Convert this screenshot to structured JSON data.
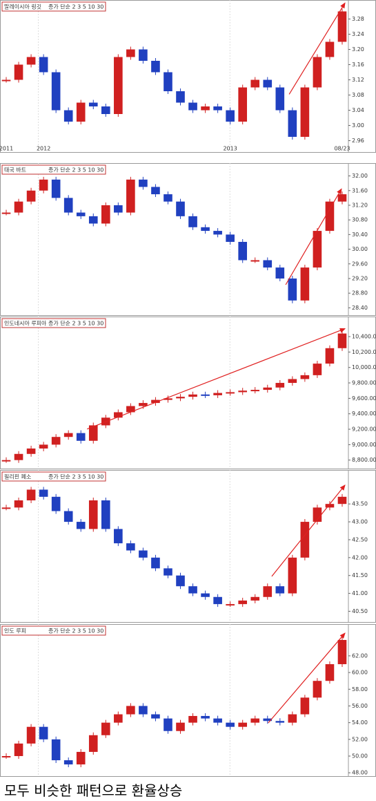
{
  "caption": "모두 비슷한 패턴으로 환율상승",
  "chart_data": [
    {
      "type": "candle",
      "title": "말레이시아 링깃",
      "legend": "종가 단순 2 3 5 10 30",
      "categories": [
        "2011",
        null,
        null,
        "2012",
        null,
        null,
        null,
        null,
        null,
        null,
        null,
        null,
        null,
        null,
        null,
        null,
        null,
        null,
        "2013",
        null,
        null,
        null,
        null,
        null,
        null,
        null,
        null,
        "08/23"
      ],
      "values": [
        3.12,
        3.16,
        3.18,
        3.14,
        3.04,
        3.01,
        3.06,
        3.05,
        3.03,
        3.18,
        3.2,
        3.17,
        3.14,
        3.09,
        3.06,
        3.04,
        3.05,
        3.04,
        3.01,
        3.1,
        3.12,
        3.1,
        3.04,
        2.97,
        3.1,
        3.18,
        3.22,
        3.3
      ],
      "ylim": [
        2.93,
        3.33
      ],
      "yticks": [
        {
          "value": 2.96,
          "label": "2.96"
        },
        {
          "value": 3.0,
          "label": "3.00"
        },
        {
          "value": 3.04,
          "label": "3.04"
        },
        {
          "value": 3.08,
          "label": "3.08"
        },
        {
          "value": 3.12,
          "label": "3.12"
        },
        {
          "value": 3.16,
          "label": "3.16"
        },
        {
          "value": 3.2,
          "label": "3.20"
        },
        {
          "value": 3.24,
          "label": "3.24"
        },
        {
          "value": 3.28,
          "label": "3.28"
        }
      ]
    },
    {
      "type": "candle",
      "title": "태국 바트",
      "legend": "종가 단순 2 3 5 10 30",
      "values": [
        31.0,
        31.3,
        31.6,
        31.9,
        31.4,
        31.0,
        30.9,
        30.7,
        31.2,
        31.0,
        31.9,
        31.7,
        31.5,
        31.3,
        30.9,
        30.6,
        30.5,
        30.4,
        30.2,
        29.7,
        29.7,
        29.5,
        29.2,
        28.6,
        29.5,
        30.5,
        31.3,
        31.5
      ],
      "ylim": [
        28.2,
        32.35
      ],
      "yticks": [
        {
          "value": 28.4,
          "label": "28.40"
        },
        {
          "value": 28.8,
          "label": "28.80"
        },
        {
          "value": 29.2,
          "label": "29.20"
        },
        {
          "value": 29.6,
          "label": "29.60"
        },
        {
          "value": 30.0,
          "label": "30.00"
        },
        {
          "value": 30.4,
          "label": "30.40"
        },
        {
          "value": 30.8,
          "label": "30.80"
        },
        {
          "value": 31.2,
          "label": "31.20"
        },
        {
          "value": 31.6,
          "label": "31.60"
        },
        {
          "value": 32.0,
          "label": "32.00"
        }
      ]
    },
    {
      "type": "candle",
      "title": "인도네시아 루피아",
      "legend": "종가 단순 2 3 5 10 30",
      "values": [
        8800,
        8880,
        8950,
        9000,
        9100,
        9150,
        9050,
        9250,
        9350,
        9420,
        9500,
        9540,
        9580,
        9600,
        9620,
        9650,
        9640,
        9670,
        9680,
        9700,
        9710,
        9740,
        9800,
        9850,
        9900,
        10050,
        10250,
        10440
      ],
      "ylim": [
        8690,
        10660
      ],
      "yticks": [
        {
          "value": 8800,
          "label": "8,800.00"
        },
        {
          "value": 9000,
          "label": "9,000.00"
        },
        {
          "value": 9200,
          "label": "9,200.00"
        },
        {
          "value": 9400,
          "label": "9,400.00"
        },
        {
          "value": 9600,
          "label": "9,600.00"
        },
        {
          "value": 9800,
          "label": "9,800.00"
        },
        {
          "value": 10000,
          "label": "10,000.00"
        },
        {
          "value": 10200,
          "label": "10,200.00"
        },
        {
          "value": 10400,
          "label": "10,400.00"
        }
      ]
    },
    {
      "type": "candle",
      "title": "필리핀 페소",
      "legend": "종가 단순 2 3 5 10 30",
      "values": [
        43.4,
        43.6,
        43.9,
        43.7,
        43.3,
        43.0,
        42.8,
        43.6,
        42.8,
        42.4,
        42.2,
        42.0,
        41.7,
        41.5,
        41.2,
        41.0,
        40.9,
        40.7,
        40.7,
        40.8,
        40.9,
        41.2,
        41.0,
        42.0,
        43.0,
        43.4,
        43.5,
        43.7
      ],
      "ylim": [
        40.2,
        44.45
      ],
      "yticks": [
        {
          "value": 40.5,
          "label": "40.50"
        },
        {
          "value": 41.0,
          "label": "41.00"
        },
        {
          "value": 41.5,
          "label": "41.50"
        },
        {
          "value": 42.0,
          "label": "42.00"
        },
        {
          "value": 42.5,
          "label": "42.50"
        },
        {
          "value": 43.0,
          "label": "43.00"
        },
        {
          "value": 43.5,
          "label": "43.50"
        }
      ]
    },
    {
      "type": "candle",
      "title": "인도 루피",
      "legend": "종가 단순 2 3 5 10 30",
      "values": [
        50.0,
        51.5,
        53.5,
        52.0,
        49.5,
        49.0,
        50.5,
        52.5,
        54.0,
        55.0,
        56.0,
        55.0,
        54.5,
        53.0,
        54.0,
        54.8,
        54.5,
        54.0,
        53.5,
        54.0,
        54.5,
        54.2,
        54.0,
        55.0,
        57.0,
        59.0,
        61.0,
        63.9
      ],
      "ylim": [
        47.6,
        65.8
      ],
      "yticks": [
        {
          "value": 48,
          "label": "48.00"
        },
        {
          "value": 50,
          "label": "50.00"
        },
        {
          "value": 52,
          "label": "52.00"
        },
        {
          "value": 54,
          "label": "54.00"
        },
        {
          "value": 56,
          "label": "56.00"
        },
        {
          "value": 58,
          "label": "58.00"
        },
        {
          "value": 60,
          "label": "60.00"
        },
        {
          "value": 62,
          "label": "62.00"
        }
      ]
    }
  ]
}
